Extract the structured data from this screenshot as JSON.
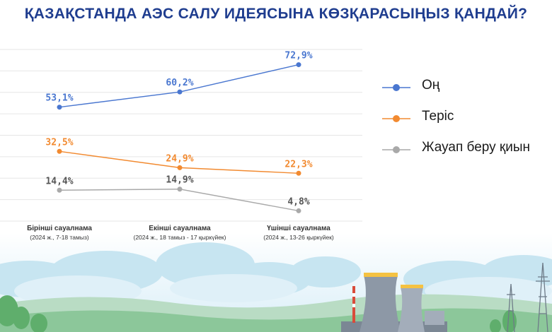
{
  "title": "ҚАЗАҚСТАНДА АЭС САЛУ ИДЕЯСЫНА КӨЗҚАРАСЫҢЫЗ ҚАНДАЙ?",
  "colors": {
    "title": "#1f3d8f",
    "positive": "#4a77d0",
    "negative": "#f28a30",
    "hard": "#a9a9a9",
    "grid": "#e6e6e6"
  },
  "chart_data": {
    "type": "line",
    "title": "ҚАЗАҚСТАНДА АЭС САЛУ ИДЕЯСЫНА КӨЗҚАРАСЫҢЫЗ ҚАНДАЙ?",
    "categories": [
      {
        "name": "Бірінші сауалнама",
        "date": "(2024 ж., 7-18 тамыз)"
      },
      {
        "name": "Екінші сауалнама",
        "date": "(2024 ж., 18 тамыз - 17 қыркүйек)"
      },
      {
        "name": "Үшінші сауалнама",
        "date": "(2024 ж., 13-26 қыркүйек)"
      }
    ],
    "series": [
      {
        "name": "Оң",
        "color": "#4a77d0",
        "values": [
          53.1,
          60.2,
          72.9
        ],
        "labels": [
          "53,1%",
          "60,2%",
          "72,9%"
        ]
      },
      {
        "name": "Теріс",
        "color": "#f28a30",
        "values": [
          32.5,
          24.9,
          22.3
        ],
        "labels": [
          "32,5%",
          "24,9%",
          "22,3%"
        ]
      },
      {
        "name": "Жауап беру қиын",
        "color": "#a9a9a9",
        "values": [
          14.4,
          14.9,
          4.8
        ],
        "labels": [
          "14,4%",
          "14,9%",
          "4,8%"
        ]
      }
    ],
    "ylim": [
      0,
      80
    ],
    "grid": true,
    "legend_position": "right",
    "xlabel": "",
    "ylabel": ""
  }
}
